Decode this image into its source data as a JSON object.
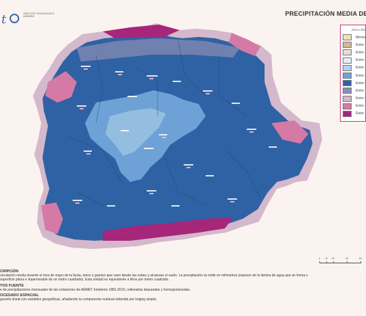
{
  "header": {
    "title": "PRECIPITACIÓN MEDIA DE M",
    "logo": {
      "mark": "t",
      "text": "INSTITUTO TECNOLÓGICO AGRARIO"
    }
  },
  "legend": {
    "unit": "(mm o l/m",
    "items": [
      {
        "label": "Menos d",
        "color": "#f3dfb2"
      },
      {
        "label": "Entre 10",
        "color": "#cfb79b"
      },
      {
        "label": "Entre 15",
        "color": "#e6dccf"
      },
      {
        "label": "Entre 20",
        "color": "#e2eef4"
      },
      {
        "label": "Entre 25",
        "color": "#b7d3ea"
      },
      {
        "label": "Entre 35",
        "color": "#6ea2d6"
      },
      {
        "label": "Entre 50",
        "color": "#2f62a4"
      },
      {
        "label": "Entre 70",
        "color": "#8c8fb3"
      },
      {
        "label": "Entre 95",
        "color": "#d4b8cc"
      },
      {
        "label": "Entre 12",
        "color": "#d57aa6"
      },
      {
        "label": "Entre 15",
        "color": "#a6267a"
      }
    ]
  },
  "map": {
    "colors": {
      "base": "#2f62a4",
      "plateau": "#6ea2d6",
      "high": "#8c8fb3",
      "veryhigh": "#d57aa6",
      "peak": "#a6267a",
      "light": "#d4b8cc"
    },
    "station_label_color": "#ffffff"
  },
  "scale": {
    "ticks": [
      "0",
      "10",
      "20",
      "40",
      "60"
    ]
  },
  "description": {
    "sections": [
      {
        "heading": "CRIPCIÓN",
        "text": "umulación media durante el mes de mayo de la lluvia, nieve y granizo que caen desde las nubes y alcanzan el suelo. La precipitación se mide en milímetros (espesor de la lámina de agua que se forma s\nsuperficie plana e impermeable de un metro cuadrado). Esta unidad es equivalente a litros por metro cuadrado."
      },
      {
        "heading": "TOS FUENTE",
        "text": "e de precipitaciones mensuales de las estaciones de AEMET treintenio 1981-2010, rellenadas depuradas y homogeneizadas."
      },
      {
        "heading": "OCESADO ESPACIAL",
        "text": "gresión lineal con variables geográficas, añadiendo la componente residual obtenida por kriging simple."
      }
    ]
  }
}
